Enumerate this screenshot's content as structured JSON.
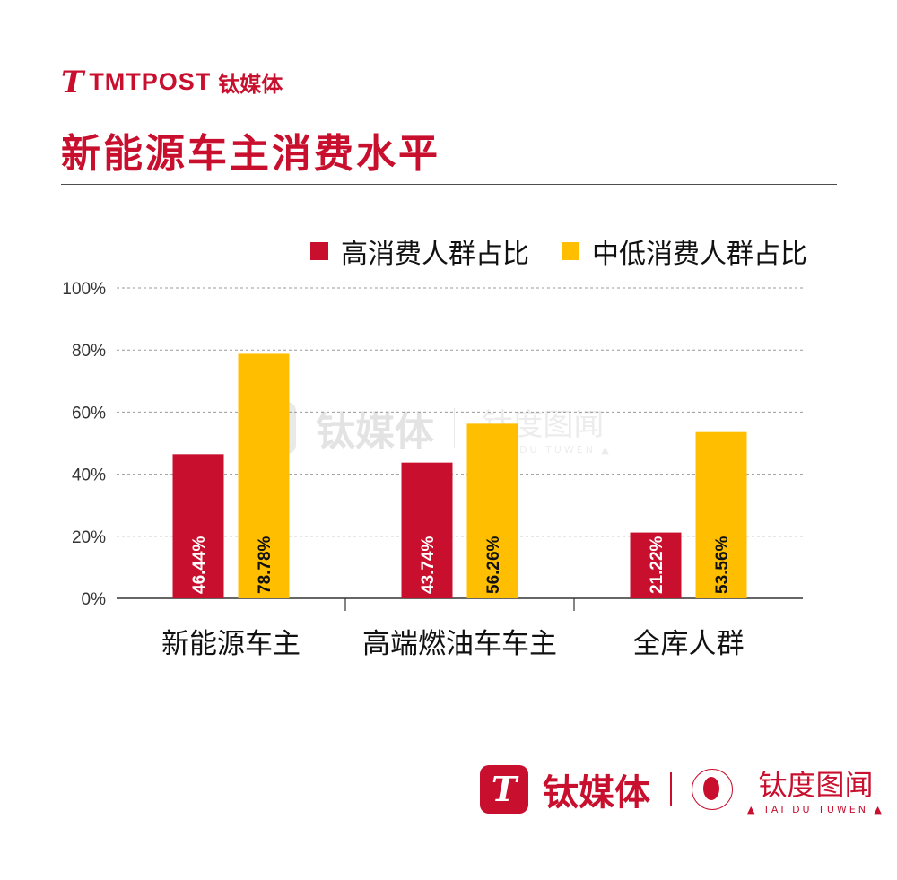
{
  "header": {
    "logo_mark": "T",
    "logo_brand": "TMTPOST",
    "logo_cn": "钛媒体",
    "title": "新能源车主消费水平"
  },
  "colors": {
    "high": "#c8102e",
    "midlow": "#ffbf00",
    "title": "#c8102e",
    "grid": "#999999",
    "axis": "#333333"
  },
  "chart_data": {
    "type": "bar",
    "title": "新能源车主消费水平",
    "categories": [
      "新能源车主",
      "高端燃油车车主",
      "全库人群"
    ],
    "series": [
      {
        "name": "高消费人群占比",
        "values": [
          46.44,
          43.74,
          21.22
        ],
        "labels": [
          "46.44%",
          "43.74%",
          "21.22%"
        ]
      },
      {
        "name": "中低消费人群占比",
        "values": [
          78.78,
          56.26,
          53.56
        ],
        "labels": [
          "78.78%",
          "56.26%",
          "53.56%"
        ]
      }
    ],
    "yticks": [
      "0%",
      "20%",
      "40%",
      "60%",
      "80%",
      "100%"
    ],
    "ylim": [
      0,
      100
    ],
    "grid": true,
    "legend": "top-right"
  },
  "watermark": {
    "mark": "T",
    "name": "钛媒体",
    "tdtw_cn": "钛度图闻",
    "tdtw_en": "▲ TAI DU TUWEN ▲"
  },
  "footer": {
    "mark": "T",
    "name": "钛媒体",
    "tdtw_cn": "钛度图闻",
    "tdtw_en": "▲ TAI DU TUWEN ▲"
  }
}
